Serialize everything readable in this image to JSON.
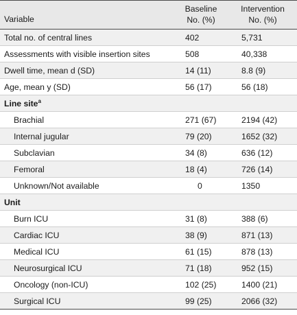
{
  "header": {
    "variable": "Variable",
    "baseline_line1": "Baseline",
    "baseline_line2": "No. (%)",
    "intervention_line1": "Intervention",
    "intervention_line2": "No. (%)"
  },
  "rows": [
    {
      "variable": "Total no. of central lines",
      "baseline": "402",
      "intervention": "5,731"
    },
    {
      "variable": "Assessments with visible insertion sites",
      "baseline": "508",
      "intervention": "40,338"
    },
    {
      "variable": "Dwell time, mean d (SD)",
      "baseline": "14 (11)",
      "intervention": "8.8 (9)"
    },
    {
      "variable": "Age, mean y (SD)",
      "baseline": "56 (17)",
      "intervention": "56 (18)"
    }
  ],
  "line_site": {
    "label": "Line site",
    "footnote_mark": "a",
    "rows": [
      {
        "variable": "Brachial",
        "baseline": "271 (67)",
        "intervention": "2194 (42)"
      },
      {
        "variable": "Internal jugular",
        "baseline": "79 (20)",
        "intervention": "1652 (32)"
      },
      {
        "variable": "Subclavian",
        "baseline": "34 (8)",
        "intervention": "636 (12)"
      },
      {
        "variable": "Femoral",
        "baseline": "18 (4)",
        "intervention": "726 (14)"
      },
      {
        "variable": "Unknown/Not available",
        "baseline": "0",
        "intervention": "1350"
      }
    ]
  },
  "unit": {
    "label": "Unit",
    "rows": [
      {
        "variable": "Burn ICU",
        "baseline": "31 (8)",
        "intervention": "388 (6)"
      },
      {
        "variable": "Cardiac ICU",
        "baseline": "38 (9)",
        "intervention": "871 (13)"
      },
      {
        "variable": "Medical ICU",
        "baseline": "61 (15)",
        "intervention": "878 (13)"
      },
      {
        "variable": "Neurosurgical ICU",
        "baseline": "71 (18)",
        "intervention": "952 (15)"
      },
      {
        "variable": "Oncology (non-ICU)",
        "baseline": "102 (25)",
        "intervention": "1400 (21)"
      },
      {
        "variable": "Surgical ICU",
        "baseline": "99 (25)",
        "intervention": "2066 (32)"
      }
    ]
  }
}
